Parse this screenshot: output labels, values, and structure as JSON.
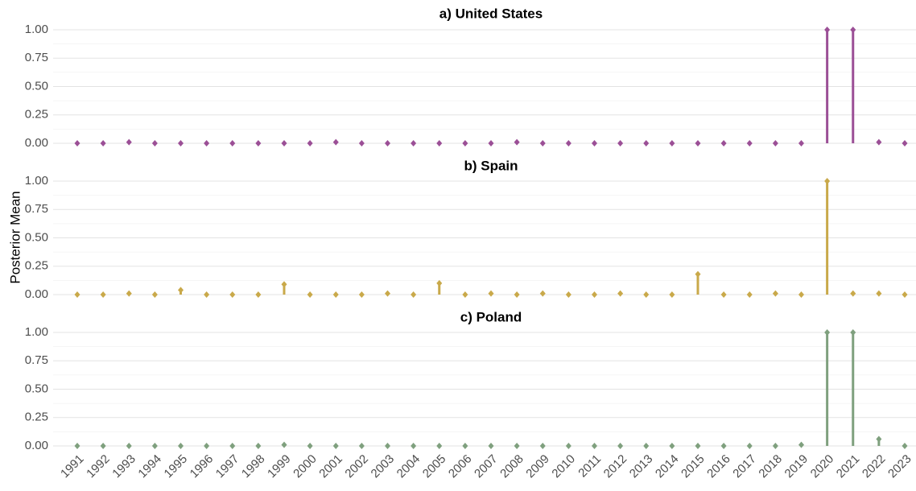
{
  "ylabel": "Posterior Mean",
  "chart_data": [
    {
      "type": "lollipop",
      "title": "a) United States",
      "color": "#9b4f96",
      "values": [
        0,
        0,
        0.01,
        0,
        0,
        0,
        0,
        0,
        0,
        0,
        0.01,
        0,
        0,
        0,
        0,
        0,
        0,
        0.01,
        0,
        0,
        0,
        0,
        0,
        0,
        0,
        0,
        0,
        0,
        0,
        1.0,
        1.0,
        0.01,
        0
      ],
      "ylim": [
        0,
        1
      ],
      "grid": true,
      "yticks": [
        {
          "value": 0,
          "label": "0.00"
        },
        {
          "value": 0.25,
          "label": "0.25"
        },
        {
          "value": 0.5,
          "label": "0.50"
        },
        {
          "value": 0.75,
          "label": "0.75"
        },
        {
          "value": 1,
          "label": "1.00"
        }
      ]
    },
    {
      "type": "lollipop",
      "title": "b) Spain",
      "color": "#c9a94a",
      "values": [
        0,
        0,
        0.01,
        0,
        0.04,
        0,
        0,
        0,
        0.09,
        0,
        0,
        0,
        0.01,
        0,
        0.1,
        0,
        0.01,
        0,
        0.01,
        0,
        0,
        0.01,
        0,
        0,
        0.18,
        0,
        0,
        0.01,
        0,
        1.0,
        0.01,
        0.01,
        0
      ],
      "ylim": [
        0,
        1
      ],
      "grid": true,
      "yticks": [
        {
          "value": 0,
          "label": "0.00"
        },
        {
          "value": 0.25,
          "label": "0.25"
        },
        {
          "value": 0.5,
          "label": "0.50"
        },
        {
          "value": 0.75,
          "label": "0.75"
        },
        {
          "value": 1,
          "label": "1.00"
        }
      ]
    },
    {
      "type": "lollipop",
      "title": "c) Poland",
      "color": "#7fa07e",
      "categories": [
        "1991",
        "1992",
        "1993",
        "1994",
        "1995",
        "1996",
        "1997",
        "1998",
        "1999",
        "2000",
        "2001",
        "2002",
        "2003",
        "2004",
        "2005",
        "2006",
        "2007",
        "2008",
        "2009",
        "2010",
        "2011",
        "2012",
        "2013",
        "2014",
        "2015",
        "2016",
        "2017",
        "2018",
        "2019",
        "2020",
        "2021",
        "2022",
        "2023"
      ],
      "values": [
        0,
        0,
        0,
        0,
        0,
        0,
        0,
        0,
        0.01,
        0,
        0,
        0,
        0,
        0,
        0,
        0,
        0,
        0,
        0,
        0,
        0,
        0,
        0,
        0,
        0,
        0,
        0,
        0,
        0.01,
        1.0,
        1.0,
        0.06,
        0
      ],
      "ylim": [
        0,
        1
      ],
      "grid": true,
      "yticks": [
        {
          "value": 0,
          "label": "0.00"
        },
        {
          "value": 0.25,
          "label": "0.25"
        },
        {
          "value": 0.5,
          "label": "0.50"
        },
        {
          "value": 0.75,
          "label": "0.75"
        },
        {
          "value": 1,
          "label": "1.00"
        }
      ]
    }
  ]
}
